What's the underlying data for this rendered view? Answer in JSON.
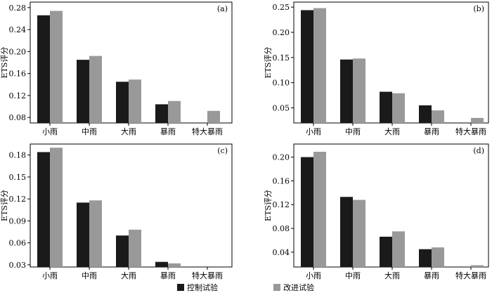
{
  "legend": [
    {
      "label": "控制试验",
      "color": "#1a1a1a"
    },
    {
      "label": "改进试验",
      "color": "#999999"
    }
  ],
  "chart_data": [
    {
      "type": "bar",
      "panel": "(a)",
      "categories": [
        "小雨",
        "中雨",
        "大雨",
        "暴雨",
        "特大暴雨"
      ],
      "ylabel": "ETS评分",
      "ylim": [
        0.07,
        0.29
      ],
      "yticks": [
        "0.08",
        "0.12",
        "0.16",
        "0.20",
        "0.24",
        "0.28"
      ],
      "series": [
        {
          "name": "控制试验",
          "values": [
            0.266,
            0.185,
            0.145,
            0.104,
            null
          ]
        },
        {
          "name": "改进试验",
          "values": [
            0.274,
            0.192,
            0.149,
            0.11,
            0.092
          ]
        }
      ]
    },
    {
      "type": "bar",
      "panel": "(b)",
      "categories": [
        "小雨",
        "中雨",
        "大雨",
        "暴雨",
        "特大暴雨"
      ],
      "ylabel": "ETS评分",
      "ylim": [
        0.02,
        0.26
      ],
      "yticks": [
        "0.05",
        "0.10",
        "0.15",
        "0.20",
        "0.25"
      ],
      "series": [
        {
          "name": "控制试验",
          "values": [
            0.244,
            0.146,
            0.082,
            0.055,
            null
          ]
        },
        {
          "name": "改进试验",
          "values": [
            0.248,
            0.148,
            0.079,
            0.045,
            0.03
          ]
        }
      ]
    },
    {
      "type": "bar",
      "panel": "(c)",
      "categories": [
        "小雨",
        "中雨",
        "大雨",
        "暴雨",
        "特大暴雨"
      ],
      "ylabel": "ETS评分",
      "ylim": [
        0.027,
        0.195
      ],
      "yticks": [
        "0.03",
        "0.06",
        "0.09",
        "0.12",
        "0.15",
        "0.18"
      ],
      "series": [
        {
          "name": "控制试验",
          "values": [
            0.184,
            0.115,
            0.07,
            0.034,
            null
          ]
        },
        {
          "name": "改进试验",
          "values": [
            0.19,
            0.118,
            0.078,
            0.032,
            null
          ]
        }
      ]
    },
    {
      "type": "bar",
      "panel": "(d)",
      "categories": [
        "小雨",
        "中雨",
        "大雨",
        "暴雨",
        "特大暴雨"
      ],
      "ylabel": "ETS评分",
      "ylim": [
        0.015,
        0.222
      ],
      "yticks": [
        "0.04",
        "0.08",
        "0.12",
        "0.16",
        "0.20"
      ],
      "series": [
        {
          "name": "控制试验",
          "values": [
            0.2,
            0.133,
            0.066,
            0.045,
            null
          ]
        },
        {
          "name": "改进试验",
          "values": [
            0.209,
            0.128,
            0.075,
            0.048,
            0.018
          ]
        }
      ]
    }
  ]
}
